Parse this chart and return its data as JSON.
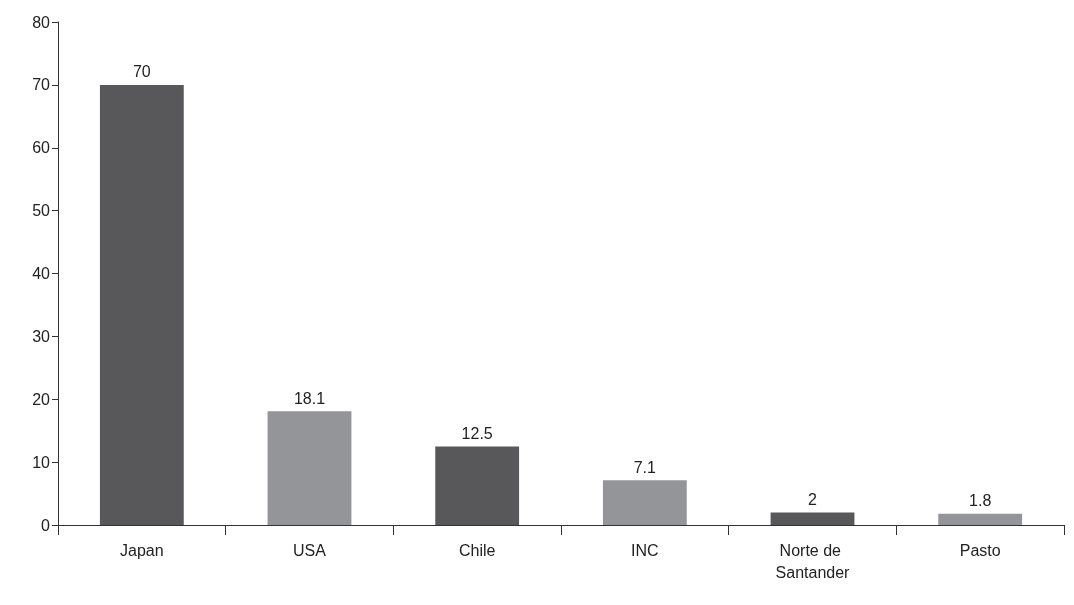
{
  "chart_data": {
    "type": "bar",
    "categories": [
      "Japan",
      "USA",
      "Chile",
      "INC",
      "Norte de Santander",
      "Pasto"
    ],
    "values": [
      70,
      18.1,
      12.5,
      7.1,
      2,
      1.8
    ],
    "colors": [
      "#58585a",
      "#939598",
      "#58585a",
      "#939598",
      "#58585a",
      "#939598"
    ],
    "ylim": [
      0,
      80
    ],
    "yticks": [
      0,
      10,
      20,
      30,
      40,
      50,
      60,
      70,
      80
    ],
    "data_labels": true,
    "grid": false
  }
}
